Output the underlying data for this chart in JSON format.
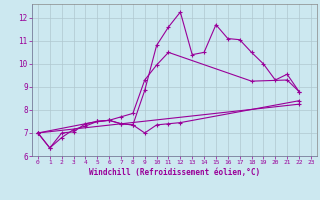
{
  "xlabel": "Windchill (Refroidissement éolien,°C)",
  "bg_color": "#cce8f0",
  "line_color": "#990099",
  "grid_color": "#b0c8d0",
  "xlim": [
    -0.5,
    23.5
  ],
  "ylim": [
    6.0,
    12.6
  ],
  "yticks": [
    6,
    7,
    8,
    9,
    10,
    11,
    12
  ],
  "xticks": [
    0,
    1,
    2,
    3,
    4,
    5,
    6,
    7,
    8,
    9,
    10,
    11,
    12,
    13,
    14,
    15,
    16,
    17,
    18,
    19,
    20,
    21,
    22,
    23
  ],
  "line1": [
    [
      0,
      7.0
    ],
    [
      1,
      6.35
    ],
    [
      2,
      7.0
    ],
    [
      3,
      7.05
    ],
    [
      4,
      7.4
    ],
    [
      5,
      7.5
    ],
    [
      6,
      7.55
    ],
    [
      7,
      7.4
    ],
    [
      8,
      7.35
    ],
    [
      9,
      8.85
    ],
    [
      10,
      10.8
    ],
    [
      11,
      11.6
    ],
    [
      12,
      12.25
    ],
    [
      13,
      10.4
    ],
    [
      14,
      10.5
    ],
    [
      15,
      11.7
    ],
    [
      16,
      11.1
    ],
    [
      17,
      11.05
    ],
    [
      18,
      10.5
    ],
    [
      19,
      10.0
    ],
    [
      20,
      9.3
    ],
    [
      21,
      9.55
    ],
    [
      22,
      8.8
    ]
  ],
  "line2": [
    [
      0,
      7.0
    ],
    [
      1,
      6.35
    ],
    [
      2,
      6.8
    ],
    [
      3,
      7.15
    ],
    [
      4,
      7.3
    ],
    [
      5,
      7.5
    ],
    [
      6,
      7.55
    ],
    [
      7,
      7.4
    ],
    [
      8,
      7.35
    ],
    [
      9,
      7.0
    ],
    [
      10,
      7.35
    ],
    [
      11,
      7.4
    ],
    [
      12,
      7.45
    ],
    [
      22,
      8.4
    ]
  ],
  "line3": [
    [
      0,
      7.0
    ],
    [
      22,
      8.25
    ]
  ],
  "line4": [
    [
      0,
      7.0
    ],
    [
      5,
      7.5
    ],
    [
      6,
      7.55
    ],
    [
      7,
      7.7
    ],
    [
      8,
      7.85
    ],
    [
      9,
      9.3
    ],
    [
      10,
      9.95
    ],
    [
      11,
      10.5
    ],
    [
      18,
      9.25
    ],
    [
      21,
      9.3
    ],
    [
      22,
      8.8
    ]
  ]
}
